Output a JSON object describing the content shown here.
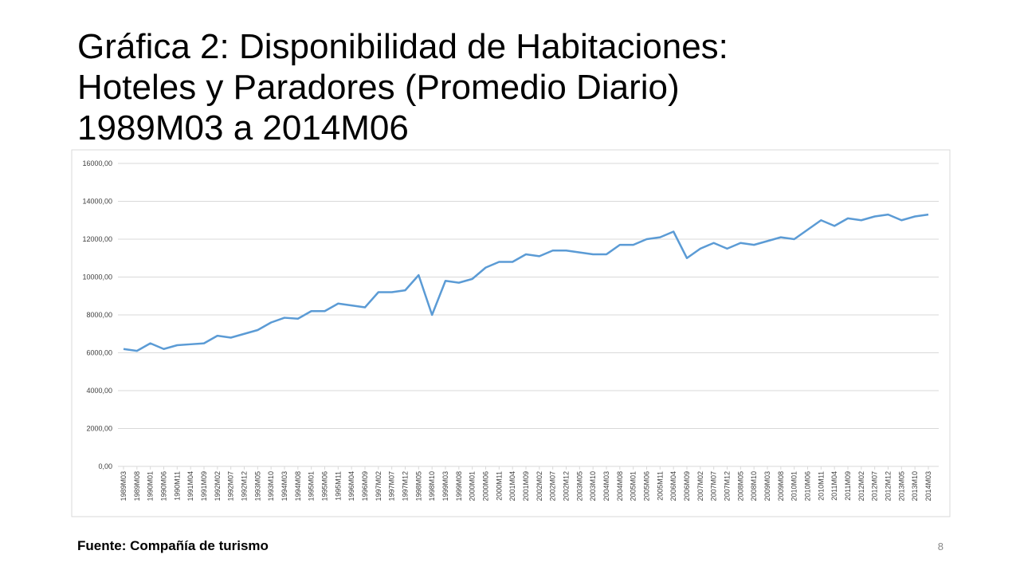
{
  "chart_data": {
    "type": "line",
    "title": [
      "Gráfica 2: Disponibilidad de Habitaciones:",
      "Hoteles y Paradores (Promedio Diario)",
      "1989M03 a 2014M06"
    ],
    "categories": [
      "1989M03",
      "1989M08",
      "1990M01",
      "1990M06",
      "1990M11",
      "1991M04",
      "1991M09",
      "1992M02",
      "1992M07",
      "1992M12",
      "1993M05",
      "1993M10",
      "1994M03",
      "1994M08",
      "1995M01",
      "1995M06",
      "1995M11",
      "1996M04",
      "1996M09",
      "1997M02",
      "1997M07",
      "1997M12",
      "1998M05",
      "1998M10",
      "1999M03",
      "1999M08",
      "2000M01",
      "2000M06",
      "2000M11",
      "2001M04",
      "2001M09",
      "2002M02",
      "2002M07",
      "2002M12",
      "2003M05",
      "2003M10",
      "2004M03",
      "2004M08",
      "2005M01",
      "2005M06",
      "2005M11",
      "2006M04",
      "2006M09",
      "2007M02",
      "2007M07",
      "2007M12",
      "2008M05",
      "2008M10",
      "2009M03",
      "2009M08",
      "2010M01",
      "2010M06",
      "2010M11",
      "2011M04",
      "2011M09",
      "2012M02",
      "2012M07",
      "2012M12",
      "2013M05",
      "2013M10",
      "2014M03"
    ],
    "series": [
      {
        "color": "#5b9bd5",
        "values": [
          6200,
          6100,
          6500,
          6200,
          6400,
          6450,
          6500,
          6900,
          6800,
          7000,
          7200,
          7600,
          7850,
          7800,
          8200,
          8200,
          8600,
          8500,
          8400,
          9200,
          9200,
          9300,
          10100,
          8000,
          9800,
          9700,
          9900,
          10500,
          10800,
          10800,
          11200,
          11100,
          11400,
          11400,
          11300,
          11200,
          11200,
          11700,
          11700,
          12000,
          12100,
          12400,
          11000,
          11500,
          11800,
          11500,
          11800,
          11700,
          11900,
          12100,
          12000,
          12500,
          13000,
          12700,
          13100,
          13000,
          13200,
          13300,
          13000,
          13200,
          13300
        ]
      }
    ],
    "ylim": [
      0,
      16000
    ],
    "yticks": [
      {
        "value": 0,
        "label": "0,00"
      },
      {
        "value": 2000,
        "label": "2000,00"
      },
      {
        "value": 4000,
        "label": "4000,00"
      },
      {
        "value": 6000,
        "label": "6000,00"
      },
      {
        "value": 8000,
        "label": "8000,00"
      },
      {
        "value": 10000,
        "label": "10000,00"
      },
      {
        "value": 12000,
        "label": "12000,00"
      },
      {
        "value": 14000,
        "label": "14000,00"
      },
      {
        "value": 16000,
        "label": "16000,00"
      }
    ],
    "grid": true
  },
  "footer": {
    "source": "Fuente: Compañía de turismo",
    "page": "8"
  }
}
